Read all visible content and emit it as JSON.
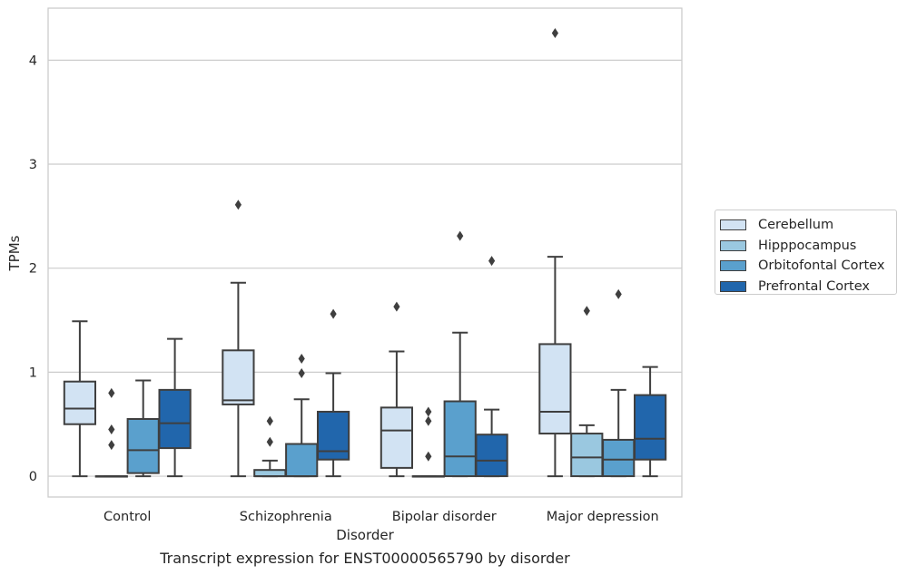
{
  "chart_data": {
    "type": "boxplot",
    "caption": "Transcript expression for ENST00000565790 by disorder",
    "xlabel": "Disorder",
    "ylabel": "TPMs",
    "ylim": [
      -0.2,
      4.5
    ],
    "yticks": [
      0,
      1,
      2,
      3,
      4
    ],
    "grid": "horizontal",
    "legend_position": "right",
    "categories": [
      "Control",
      "Schizophrenia",
      "Bipolar disorder",
      "Major depression"
    ],
    "series": [
      {
        "name": "Cerebellum",
        "color": "#d2e3f3",
        "boxes": [
          {
            "whisker_low": 0,
            "q1": 0.5,
            "median": 0.65,
            "q3": 0.91,
            "whisker_high": 1.49,
            "outliers": []
          },
          {
            "whisker_low": 0,
            "q1": 0.69,
            "median": 0.73,
            "q3": 1.21,
            "whisker_high": 1.86,
            "outliers": [
              2.61
            ]
          },
          {
            "whisker_low": 0,
            "q1": 0.08,
            "median": 0.44,
            "q3": 0.66,
            "whisker_high": 1.2,
            "outliers": [
              1.63
            ]
          },
          {
            "whisker_low": 0,
            "q1": 0.41,
            "median": 0.62,
            "q3": 1.27,
            "whisker_high": 2.11,
            "outliers": [
              4.26
            ]
          }
        ]
      },
      {
        "name": "Hipppocampus",
        "color": "#9ac8e0",
        "boxes": [
          {
            "whisker_low": 0,
            "q1": 0,
            "median": 0,
            "q3": 0,
            "whisker_high": 0,
            "outliers": [
              0.8,
              0.45,
              0.3
            ]
          },
          {
            "whisker_low": 0,
            "q1": 0,
            "median": 0,
            "q3": 0.06,
            "whisker_high": 0.15,
            "outliers": [
              0.53,
              0.33
            ]
          },
          {
            "whisker_low": 0,
            "q1": 0,
            "median": 0,
            "q3": 0,
            "whisker_high": 0,
            "outliers": [
              0.62,
              0.53,
              0.19
            ]
          },
          {
            "whisker_low": 0,
            "q1": 0,
            "median": 0.18,
            "q3": 0.41,
            "whisker_high": 0.49,
            "outliers": [
              1.59
            ]
          }
        ]
      },
      {
        "name": "Orbitofontal Cortex",
        "color": "#5aa0cd",
        "boxes": [
          {
            "whisker_low": 0,
            "q1": 0.03,
            "median": 0.25,
            "q3": 0.55,
            "whisker_high": 0.92,
            "outliers": []
          },
          {
            "whisker_low": 0,
            "q1": 0,
            "median": 0,
            "q3": 0.31,
            "whisker_high": 0.74,
            "outliers": [
              1.13,
              0.99
            ]
          },
          {
            "whisker_low": 0,
            "q1": 0,
            "median": 0.19,
            "q3": 0.72,
            "whisker_high": 1.38,
            "outliers": [
              2.31
            ]
          },
          {
            "whisker_low": 0,
            "q1": 0,
            "median": 0.16,
            "q3": 0.35,
            "whisker_high": 0.83,
            "outliers": [
              1.75
            ]
          }
        ]
      },
      {
        "name": "Prefrontal Cortex",
        "color": "#2166ac",
        "boxes": [
          {
            "whisker_low": 0,
            "q1": 0.27,
            "median": 0.51,
            "q3": 0.83,
            "whisker_high": 1.32,
            "outliers": []
          },
          {
            "whisker_low": 0,
            "q1": 0.16,
            "median": 0.24,
            "q3": 0.62,
            "whisker_high": 0.99,
            "outliers": [
              1.56
            ]
          },
          {
            "whisker_low": 0,
            "q1": 0,
            "median": 0.15,
            "q3": 0.4,
            "whisker_high": 0.64,
            "outliers": [
              2.07
            ]
          },
          {
            "whisker_low": 0,
            "q1": 0.16,
            "median": 0.36,
            "q3": 0.78,
            "whisker_high": 1.05,
            "outliers": []
          }
        ]
      }
    ]
  }
}
